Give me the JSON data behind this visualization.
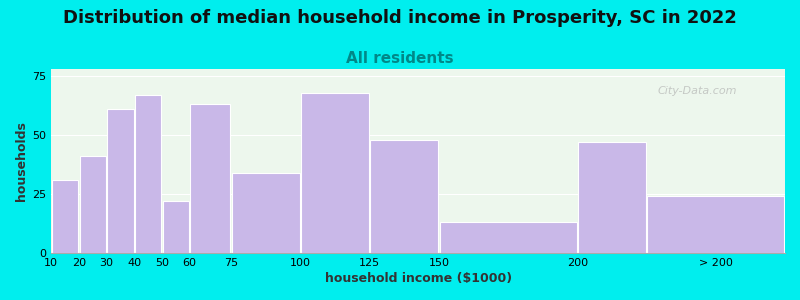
{
  "title": "Distribution of median household income in Prosperity, SC in 2022",
  "subtitle": "All residents",
  "xlabel": "household income ($1000)",
  "ylabel": "households",
  "bar_labels": [
    "10",
    "20",
    "30",
    "40",
    "50",
    "60",
    "75",
    "100",
    "125",
    "150",
    "200",
    "> 200"
  ],
  "bar_left_edges": [
    10,
    20,
    30,
    40,
    50,
    60,
    75,
    100,
    125,
    150,
    200,
    225
  ],
  "bar_widths": [
    10,
    10,
    10,
    10,
    10,
    15,
    25,
    25,
    25,
    50,
    25,
    50
  ],
  "bar_values": [
    31,
    41,
    61,
    67,
    22,
    63,
    34,
    68,
    48,
    13,
    47,
    24
  ],
  "bar_color": "#c9b8e8",
  "bar_edge_color": "#ffffff",
  "ylim": [
    0,
    78
  ],
  "yticks": [
    0,
    25,
    50,
    75
  ],
  "xlim": [
    10,
    275
  ],
  "xtick_positions": [
    10,
    20,
    30,
    40,
    50,
    60,
    75,
    100,
    125,
    150,
    200,
    250
  ],
  "xtick_labels": [
    "10",
    "20",
    "30",
    "40",
    "50",
    "60",
    "75",
    "100",
    "125",
    "150",
    "200",
    "> 200"
  ],
  "background_color": "#00eeee",
  "plot_bg_color": "#edf7ed",
  "title_fontsize": 13,
  "subtitle_fontsize": 11,
  "subtitle_color": "#008888",
  "axis_label_fontsize": 9,
  "watermark": "City-Data.com"
}
